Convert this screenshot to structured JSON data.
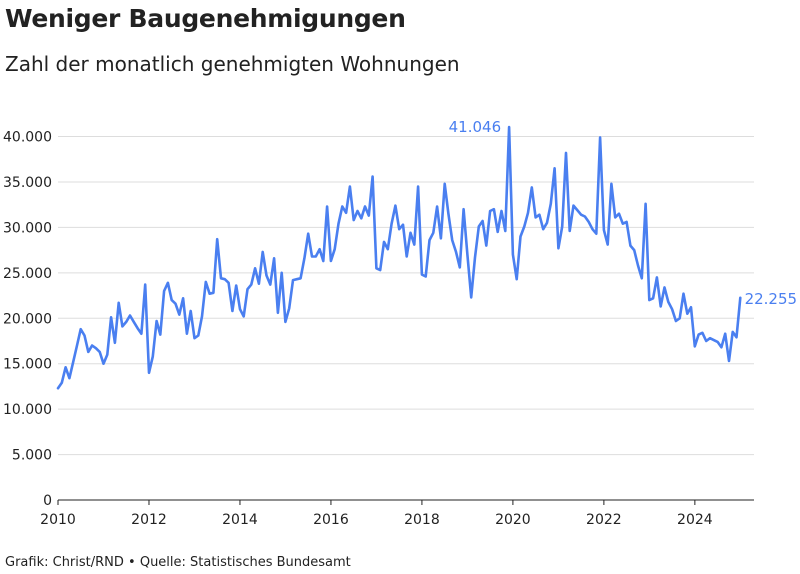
{
  "chart_data": {
    "type": "line",
    "title": "Weniger Baugenehmigungen",
    "subtitle": "Zahl der monatlich genehmigten Wohnungen",
    "source": "Grafik: Christ/RND • Quelle: Statistisches Bundesamt",
    "line_color": "#4a7ff0",
    "grid": true,
    "xlim": [
      2010,
      2025.3
    ],
    "ylim": [
      0,
      41046
    ],
    "x_ticks": [
      2010,
      2012,
      2014,
      2016,
      2018,
      2020,
      2022,
      2024
    ],
    "x_tick_labels": [
      "2010",
      "2012",
      "2014",
      "2016",
      "2018",
      "2020",
      "2022",
      "2024"
    ],
    "y_ticks": [
      0,
      5000,
      10000,
      15000,
      20000,
      25000,
      30000,
      35000,
      40000
    ],
    "y_tick_labels": [
      "0",
      "5.000",
      "10.000",
      "15.000",
      "20.000",
      "25.000",
      "30.000",
      "35.000",
      "40.000"
    ],
    "annotations": [
      {
        "label": "41.046",
        "x": 2019.917,
        "y": 41046,
        "position": "left"
      },
      {
        "label": "22.255",
        "x": 2024.917,
        "y": 22255,
        "position": "right"
      }
    ],
    "series": [
      {
        "x_start": 2010.0,
        "x_step": 0.08333,
        "values": [
          12300,
          12900,
          14600,
          13400,
          15200,
          17000,
          18800,
          18100,
          16300,
          17000,
          16700,
          16300,
          15000,
          16000,
          20100,
          17300,
          21700,
          19100,
          19600,
          20300,
          19600,
          18900,
          18300,
          23700,
          14000,
          15800,
          19700,
          18200,
          23000,
          23900,
          22000,
          21600,
          20400,
          22200,
          18300,
          20800,
          17800,
          18100,
          20200,
          24000,
          22700,
          22800,
          28700,
          24400,
          24300,
          23900,
          20800,
          23600,
          21000,
          20200,
          23200,
          23700,
          25500,
          23800,
          27300,
          24700,
          23700,
          26600,
          20600,
          25000,
          19600,
          21100,
          24200,
          24300,
          24400,
          26600,
          29300,
          26800,
          26800,
          27600,
          26300,
          32300,
          26300,
          27600,
          30400,
          32300,
          31600,
          34500,
          30800,
          31800,
          31000,
          32300,
          31300,
          35600,
          25500,
          25300,
          28400,
          27600,
          30400,
          32400,
          29800,
          30300,
          26800,
          29400,
          28100,
          34500,
          24800,
          24600,
          28600,
          29400,
          32300,
          28800,
          34800,
          31500,
          28600,
          27300,
          25600,
          32000,
          27000,
          22300,
          26700,
          30100,
          30700,
          28000,
          31800,
          32000,
          29500,
          31800,
          29600,
          41046,
          27000,
          24300,
          29000,
          30100,
          31600,
          34400,
          31100,
          31400,
          29800,
          30500,
          32600,
          36500,
          27700,
          30100,
          38200,
          29600,
          32400,
          31900,
          31400,
          31200,
          30600,
          29800,
          29300,
          39900,
          29700,
          28100,
          34800,
          31100,
          31500,
          30400,
          30600,
          28000,
          27500,
          25800,
          24400,
          32600,
          22000,
          22200,
          24500,
          21300,
          23400,
          21800,
          21000,
          19700,
          20000,
          22700,
          20500,
          21200,
          16900,
          18200,
          18400,
          17500,
          17800,
          17600,
          17400,
          16800,
          18300,
          15300,
          18500,
          17900,
          22255
        ]
      }
    ]
  }
}
